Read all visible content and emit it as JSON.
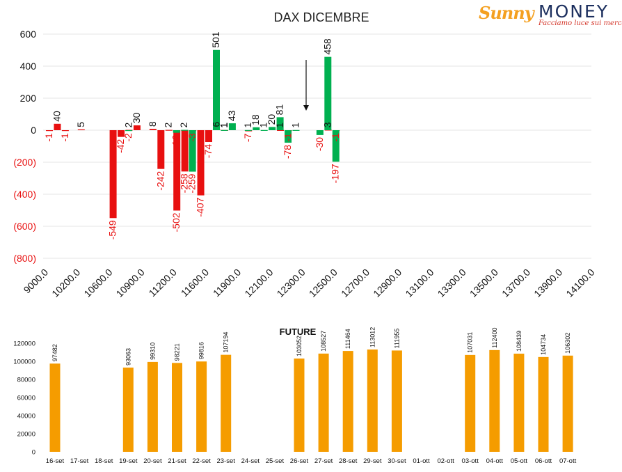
{
  "logo": {
    "brand_first": "Sunny",
    "brand_second": "MONEY",
    "tagline": "Facciamo luce sui mercati"
  },
  "chart_data": [
    {
      "type": "bar",
      "title": "DAX DICEMBRE",
      "colors": {
        "call": "#00b050",
        "put": "#e81010",
        "text_negative": "#e81010"
      },
      "y_ticks": [
        "600",
        "400",
        "200",
        "0",
        "(200)",
        "(400)",
        "(600)",
        "(800)"
      ],
      "ylim": [
        -800,
        600
      ],
      "x_ticks": [
        "9000.0",
        "10200.0",
        "10600.0",
        "10900.0",
        "11200.0",
        "11600.0",
        "11900.0",
        "12100.0",
        "12300.0",
        "12500.0",
        "12700.0",
        "12900.0",
        "13100.0",
        "13300.0",
        "13500.0",
        "13700.0",
        "13900.0",
        "14100.0"
      ],
      "series": [
        {
          "color": "put",
          "points": [
            {
              "slot": 0,
              "value": -1
            },
            {
              "slot": 1,
              "value": 40
            },
            {
              "slot": 2,
              "value": -1
            },
            {
              "slot": 4,
              "value": 5
            },
            {
              "slot": 8,
              "value": -549
            },
            {
              "slot": 9,
              "value": -42
            },
            {
              "slot": 10,
              "value": 2
            },
            {
              "slot": 11,
              "value": 30
            },
            {
              "slot": 13,
              "value": 8
            },
            {
              "slot": 14,
              "value": -242
            },
            {
              "slot": 15,
              "value": 2
            },
            {
              "slot": 16,
              "value": -502
            },
            {
              "slot": 17,
              "value": -258
            },
            {
              "slot": 18,
              "value": -3
            },
            {
              "slot": 19,
              "value": -407
            },
            {
              "slot": 20,
              "value": -74
            },
            {
              "slot": 21,
              "value": 6
            },
            {
              "slot": 22,
              "value": 1
            },
            {
              "slot": 25,
              "value": -7
            },
            {
              "slot": 29,
              "value": 1
            },
            {
              "slot": 30,
              "value": -1
            },
            {
              "slot": 35,
              "value": 3
            },
            {
              "slot": 36,
              "value": -1
            }
          ]
        },
        {
          "color": "call",
          "points": [
            {
              "slot": 9,
              "value": -2
            },
            {
              "slot": 15,
              "value": -16
            },
            {
              "slot": 16,
              "value": 2
            },
            {
              "slot": 17,
              "value": -259
            },
            {
              "slot": 20,
              "value": 501
            },
            {
              "slot": 21,
              "value": 1
            },
            {
              "slot": 22,
              "value": 43
            },
            {
              "slot": 24,
              "value": 1
            },
            {
              "slot": 25,
              "value": 18
            },
            {
              "slot": 26,
              "value": 1
            },
            {
              "slot": 27,
              "value": 20
            },
            {
              "slot": 28,
              "value": 81
            },
            {
              "slot": 29,
              "value": -78
            },
            {
              "slot": 30,
              "value": 1
            },
            {
              "slot": 33,
              "value": -30
            },
            {
              "slot": 34,
              "value": 458
            },
            {
              "slot": 35,
              "value": -197
            }
          ]
        }
      ],
      "annotation": "down-arrow"
    },
    {
      "type": "bar",
      "title": "FUTURE",
      "color": "#f59c00",
      "y_ticks": [
        "120000",
        "100000",
        "80000",
        "60000",
        "40000",
        "20000",
        "0"
      ],
      "ylim": [
        0,
        120000
      ],
      "categories": [
        "16-set",
        "17-set",
        "18-set",
        "19-set",
        "20-set",
        "21-set",
        "22-set",
        "23-set",
        "24-set",
        "25-set",
        "26-set",
        "27-set",
        "28-set",
        "29-set",
        "30-set",
        "01-ott",
        "02-ott",
        "03-ott",
        "04-ott",
        "05-ott",
        "06-ott",
        "07-ott"
      ],
      "values": [
        97482,
        null,
        null,
        93063,
        99310,
        98221,
        99816,
        107194,
        null,
        null,
        103052,
        108527,
        111464,
        113012,
        111955,
        null,
        null,
        107031,
        112400,
        108439,
        104734,
        106302
      ],
      "value_labels": [
        "97482",
        "",
        "",
        "93063",
        "99310",
        "98221",
        "99816",
        "107194",
        "",
        "",
        "103052",
        "108527",
        "111464",
        "113012",
        "111955",
        "",
        "",
        "107031",
        "112400",
        "108439",
        "104734",
        "106302"
      ]
    }
  ]
}
